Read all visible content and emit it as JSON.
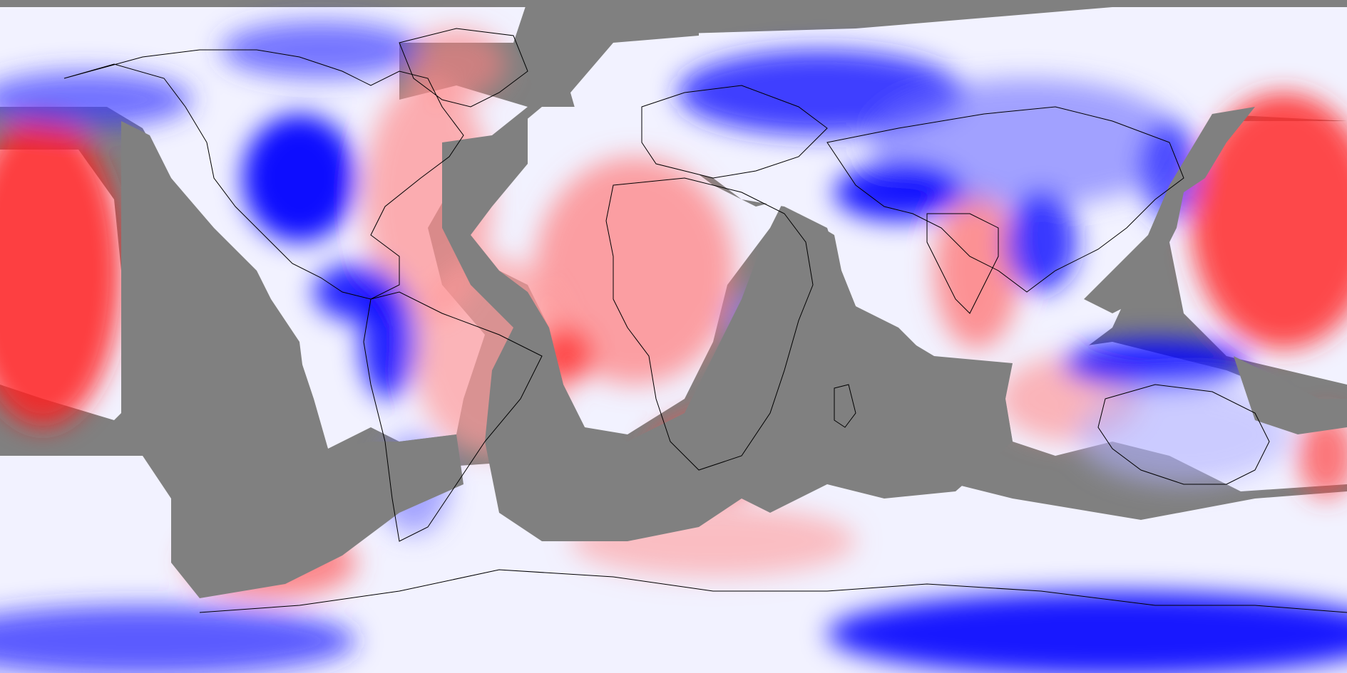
{
  "map": {
    "projection": "equirectangular",
    "extent": {
      "lon": [
        -180,
        180
      ],
      "lat": [
        -90,
        90
      ]
    },
    "missing_color": "#808080",
    "palette": {
      "strong_negative": "#0000ff",
      "neutral": "#ffffff",
      "strong_positive": "#ff0000"
    },
    "coastline_color": "#000000",
    "regions": [
      {
        "name": "central-pacific-warm",
        "type": "field-blob",
        "sign": "positive",
        "intensity": 0.9
      },
      {
        "name": "western-pacific-warm",
        "type": "field-blob",
        "sign": "positive",
        "intensity": 0.85
      },
      {
        "name": "north-america-west-cold",
        "type": "field-blob",
        "sign": "negative",
        "intensity": 0.95
      },
      {
        "name": "greenland-mixed",
        "type": "field-blob",
        "sign": "positive",
        "intensity": 0.35
      },
      {
        "name": "europe-siberia-cold",
        "type": "field-blob",
        "sign": "negative",
        "intensity": 0.75
      },
      {
        "name": "africa-warm",
        "type": "field-blob",
        "sign": "positive",
        "intensity": 0.55
      },
      {
        "name": "south-asia-warm",
        "type": "field-blob",
        "sign": "positive",
        "intensity": 0.5
      },
      {
        "name": "tibet-cold",
        "type": "field-blob",
        "sign": "negative",
        "intensity": 0.85
      },
      {
        "name": "maritime-continent-cold",
        "type": "field-blob",
        "sign": "negative",
        "intensity": 0.85
      },
      {
        "name": "australia-cool",
        "type": "field-blob",
        "sign": "negative",
        "intensity": 0.3
      },
      {
        "name": "south-america-west-cold",
        "type": "field-blob",
        "sign": "negative",
        "intensity": 0.8
      },
      {
        "name": "antarctica-cold",
        "type": "field-blob",
        "sign": "negative",
        "intensity": 0.9
      },
      {
        "name": "southern-ocean-warm",
        "type": "field-blob",
        "sign": "positive",
        "intensity": 0.45
      }
    ]
  }
}
